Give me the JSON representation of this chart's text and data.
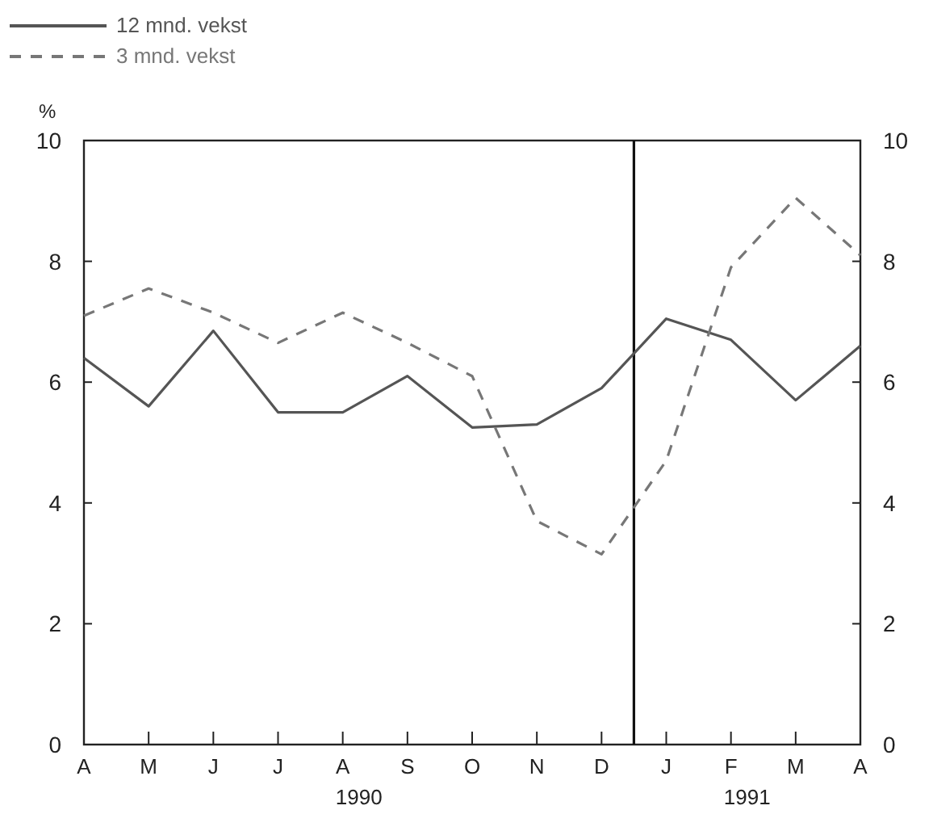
{
  "chart_data": {
    "type": "line",
    "ylabel": "%",
    "categories": [
      "A",
      "M",
      "J",
      "J",
      "A",
      "S",
      "O",
      "N",
      "D",
      "J",
      "F",
      "M",
      "A"
    ],
    "ylim": [
      0,
      10
    ],
    "yticks": [
      0,
      2,
      4,
      6,
      8,
      10
    ],
    "y2lim": [
      0,
      10
    ],
    "y2ticks": [
      0,
      2,
      4,
      6,
      8,
      10
    ],
    "series": [
      {
        "name": "12 mnd. vekst",
        "color": "#555555",
        "line_style": "solid",
        "values": [
          6.4,
          5.6,
          6.85,
          5.5,
          5.5,
          6.1,
          5.25,
          5.3,
          5.9,
          7.05,
          6.7,
          5.7,
          6.6
        ]
      },
      {
        "name": "3 mnd. vekst",
        "color": "#777777",
        "line_style": "dashed",
        "values": [
          7.1,
          7.55,
          7.15,
          6.65,
          7.15,
          6.65,
          6.1,
          3.7,
          3.15,
          4.7,
          7.9,
          9.05,
          8.1
        ]
      }
    ],
    "annotations": [
      "1990",
      "1991"
    ],
    "legend": "top left",
    "grid": false,
    "marker": "none"
  }
}
